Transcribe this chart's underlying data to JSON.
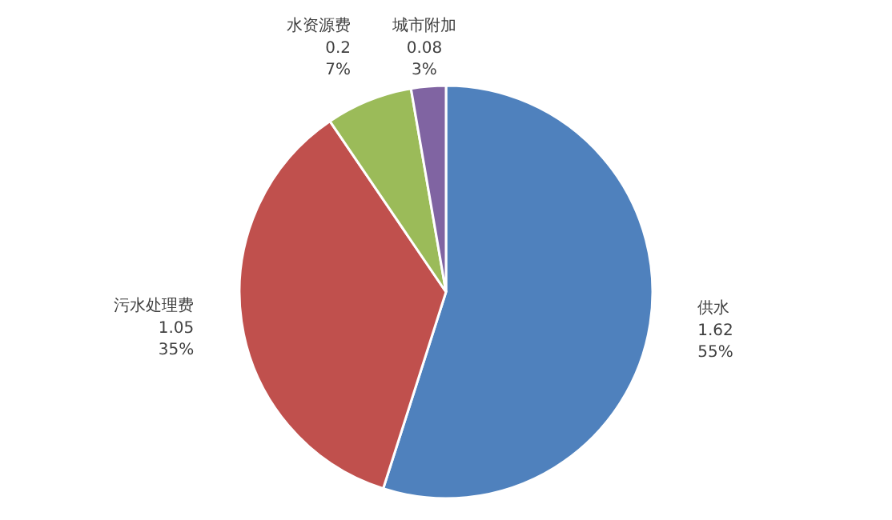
{
  "chart_data": {
    "type": "pie",
    "categories": [
      "供水",
      "污水处理费",
      "水资源费",
      "城市附加"
    ],
    "values": [
      1.62,
      1.05,
      0.2,
      0.08
    ],
    "colors": [
      "#4f81bd",
      "#c0504d",
      "#9bbb59",
      "#8064a2"
    ],
    "value_labels": [
      "1.62\n55%",
      "1.05\n35%",
      "0.2\n7%",
      "0.08\n3%"
    ],
    "legend": false
  }
}
